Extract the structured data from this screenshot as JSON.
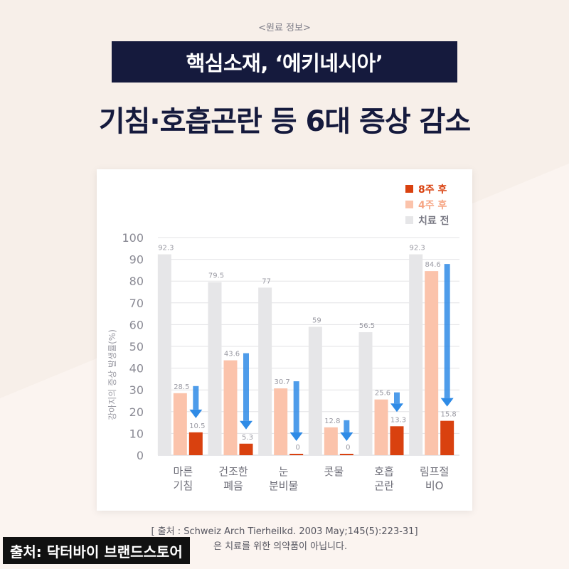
{
  "header": {
    "kicker": "<원료 정보>",
    "title_box": "핵심소재, ‘에키네시아’",
    "title": "기침·호흡곤란 등 6대 증상 감소"
  },
  "chart_data": {
    "type": "bar",
    "ylabel": "강아지의 증상 발생률(%)",
    "ylim": [
      0,
      100
    ],
    "yticks": [
      0,
      10,
      20,
      30,
      40,
      50,
      60,
      70,
      80,
      90,
      100
    ],
    "grid": true,
    "legend_position": "top-right",
    "categories": [
      [
        "마른",
        "기침"
      ],
      [
        "건조한",
        "폐음"
      ],
      [
        "눈",
        "분비물"
      ],
      [
        "콧물"
      ],
      [
        "호흡",
        "곤란"
      ],
      [
        "림프절",
        "비O"
      ]
    ],
    "series": [
      {
        "name": "치료 전",
        "color": "#e6e6e8",
        "values": [
          92.3,
          79.5,
          77,
          59,
          56.5,
          92.3
        ]
      },
      {
        "name": "4주 후",
        "color": "#fbc3ab",
        "values": [
          28.5,
          43.6,
          30.7,
          12.8,
          25.6,
          84.6
        ]
      },
      {
        "name": "8주 후",
        "color": "#d9410f",
        "values": [
          10.5,
          5.3,
          0,
          0,
          13.3,
          15.8
        ]
      }
    ],
    "legend_order": [
      "8주 후",
      "4주 후",
      "치료 전"
    ],
    "legend_text_colors": [
      "#d9410f",
      "#f6a584",
      "#777782"
    ],
    "arrow_color": "#2f8be6"
  },
  "footer": {
    "source": "[ 출처 : Schweiz Arch Tierheilkd. 2003 May;145(5):223-31]",
    "disclaimer": "은 치료를 위한 의약품이 아닙니다.",
    "credit": "출처: 닥터바이 브랜드스토어"
  }
}
